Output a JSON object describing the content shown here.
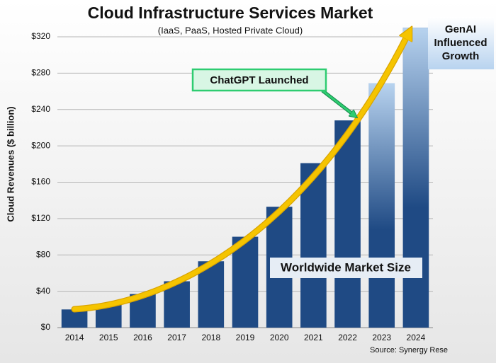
{
  "chart_data": {
    "type": "bar",
    "title": "Cloud Infrastructure Services Market",
    "subtitle": "(IaaS, PaaS, Hosted Private Cloud)",
    "y_label": "Cloud Revenues ($ billion)",
    "categories": [
      "2014",
      "2015",
      "2016",
      "2017",
      "2018",
      "2019",
      "2020",
      "2021",
      "2022",
      "2023",
      "2024"
    ],
    "values": [
      20,
      26,
      37,
      51,
      73,
      100,
      133,
      181,
      228,
      269,
      330
    ],
    "faded": [
      false,
      false,
      false,
      false,
      false,
      false,
      false,
      false,
      false,
      true,
      true
    ],
    "color": "#1f4a84",
    "ylim": [
      0,
      320
    ],
    "yticks": [
      {
        "value": 0,
        "label": "$0"
      },
      {
        "value": 40,
        "label": "$40"
      },
      {
        "value": 80,
        "label": "$80"
      },
      {
        "value": 120,
        "label": "$120"
      },
      {
        "value": 160,
        "label": "$160"
      },
      {
        "value": 200,
        "label": "$200"
      },
      {
        "value": 240,
        "label": "$240"
      },
      {
        "value": 280,
        "label": "$280"
      },
      {
        "value": 320,
        "label": "$320"
      }
    ],
    "grid": true,
    "annotations": {
      "chatgpt": "ChatGPT Launched",
      "genai": [
        "GenAI",
        "Influenced",
        "Growth"
      ],
      "market": "Worldwide Market Size"
    },
    "source": "Source: Synergy Rese"
  }
}
